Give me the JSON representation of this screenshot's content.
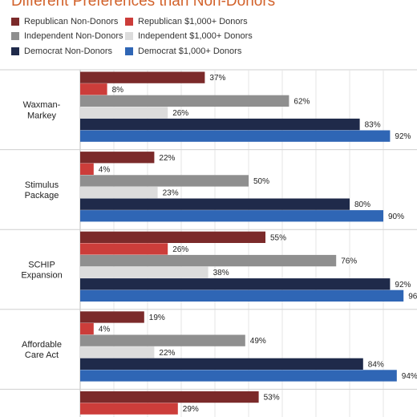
{
  "title": "Different Preferences than Non-Donors",
  "legend": [
    {
      "name": "Republican Non-Donors",
      "color": "#7b2a2a"
    },
    {
      "name": "Republican $1,000+ Donors",
      "color": "#cc3d3a"
    },
    {
      "name": "Independent Non-Donors",
      "color": "#8f8f8f"
    },
    {
      "name": "Independent $1,000+ Donors",
      "color": "#dcdcdc"
    },
    {
      "name": "Democrat Non-Donors",
      "color": "#1f2a4a"
    },
    {
      "name": "Democrat $1,000+ Donors",
      "color": "#2f66b5"
    }
  ],
  "chart_data": {
    "type": "bar",
    "orientation": "horizontal",
    "title": "Different Preferences than Non-Donors",
    "xlim": [
      0,
      100
    ],
    "grid": true,
    "legend_position": "top",
    "value_suffix": "%",
    "categories": [
      [
        "Waxman-",
        "Markey"
      ],
      [
        "Stimulus",
        "Package"
      ],
      [
        "SCHIP",
        "Expansion"
      ],
      [
        "Affordable",
        "Care Act"
      ],
      [
        ""
      ]
    ],
    "series": [
      {
        "name": "Republican Non-Donors",
        "color": "#7b2a2a",
        "values": [
          37,
          22,
          55,
          19,
          53
        ]
      },
      {
        "name": "Republican $1,000+ Donors",
        "color": "#cc3d3a",
        "values": [
          8,
          4,
          26,
          4,
          29
        ]
      },
      {
        "name": "Independent Non-Donors",
        "color": "#8f8f8f",
        "values": [
          62,
          50,
          76,
          49,
          null
        ]
      },
      {
        "name": "Independent $1,000+ Donors",
        "color": "#dcdcdc",
        "values": [
          26,
          23,
          38,
          22,
          null
        ]
      },
      {
        "name": "Democrat Non-Donors",
        "color": "#1f2a4a",
        "values": [
          83,
          80,
          92,
          84,
          null
        ]
      },
      {
        "name": "Democrat $1,000+ Donors",
        "color": "#2f66b5",
        "values": [
          92,
          90,
          96,
          94,
          null
        ]
      }
    ]
  }
}
